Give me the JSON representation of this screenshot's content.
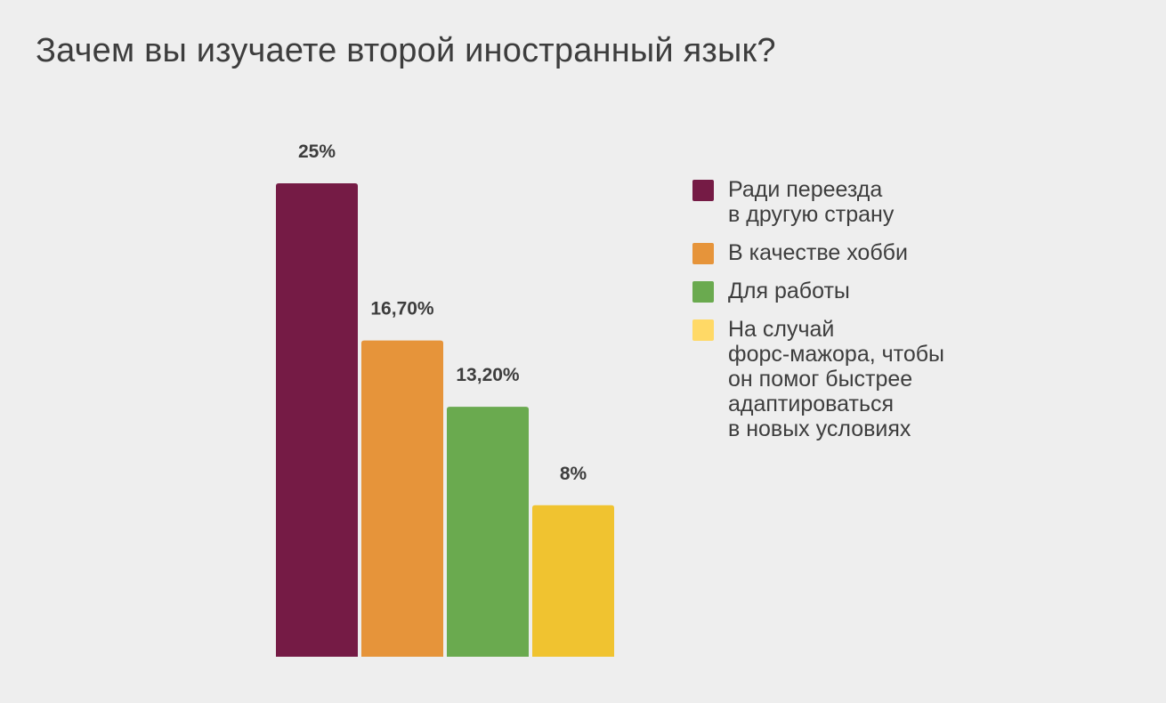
{
  "title": "Зачем вы изучаете второй иностранный язык?",
  "chart_data": {
    "type": "bar",
    "title": "Зачем вы изучаете второй иностранный язык?",
    "xlabel": "",
    "ylabel": "",
    "ylim": [
      0,
      25
    ],
    "grid": false,
    "legend_position": "right",
    "categories": [
      "Ради переезда\nв другую страну",
      "В качестве хобби",
      "Для работы",
      "На случай\nфорс-мажора, чтобы\nон помог быстрее\nадаптироваться\nв новых условиях"
    ],
    "values": [
      25,
      16.7,
      13.2,
      8
    ],
    "value_labels": [
      "25%",
      "16,70%",
      "13,20%",
      "8%"
    ],
    "colors": [
      "#751b45",
      "#e6943a",
      "#6aaa4f",
      "#f0c330"
    ],
    "legend_colors": [
      "#751b45",
      "#e6943a",
      "#6aaa4f",
      "#ffd966"
    ]
  }
}
